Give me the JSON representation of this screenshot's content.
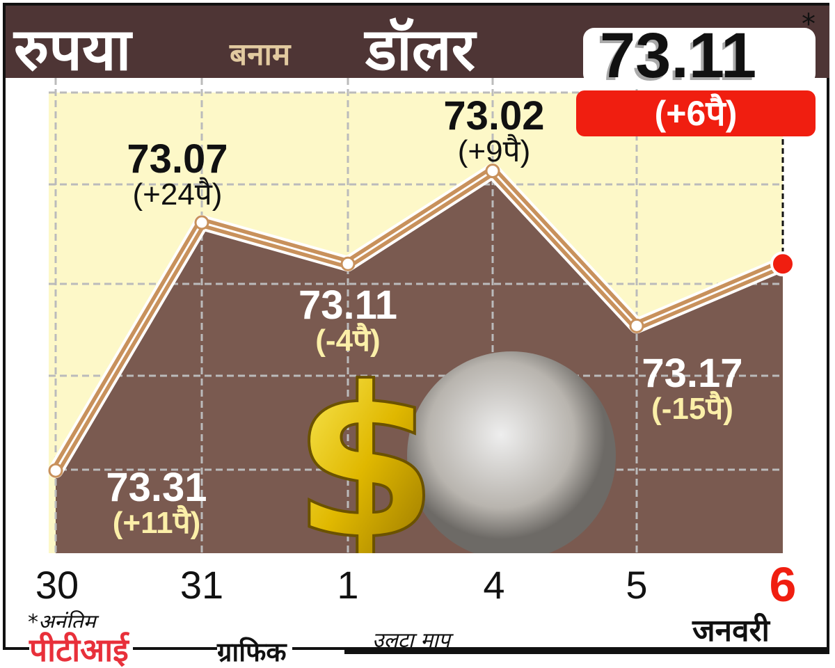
{
  "title": {
    "part1": "रुपया",
    "part2": "बनाम",
    "part3": "डॉलर"
  },
  "current": {
    "value": "73.11",
    "asterisk": "*",
    "change": "(+6पै)"
  },
  "chart_data": {
    "type": "line",
    "categories": [
      "30",
      "31",
      "1",
      "4",
      "5",
      "6"
    ],
    "values": [
      73.31,
      73.07,
      73.11,
      73.02,
      73.17,
      73.11
    ],
    "data_labels": [
      {
        "value": "73.31",
        "change": "(+11पै)"
      },
      {
        "value": "73.07",
        "change": "(+24पै)"
      },
      {
        "value": "73.11",
        "change": "(-4पै)"
      },
      {
        "value": "73.02",
        "change": "(+9पै)"
      },
      {
        "value": "73.17",
        "change": "(-15पै)"
      },
      {
        "value": "73.11",
        "change": "(+6पै)"
      }
    ],
    "xlabel": "जनवरी",
    "axis_note": "उलटा माप",
    "ylim": [
      72.93,
      73.39
    ],
    "y_reversed": true,
    "grid": true,
    "colors": {
      "above": "#fdf8c8",
      "below": "#7a5a50",
      "line": "#c8915c",
      "last_point": "#f01e10",
      "header": "#4e3535"
    }
  },
  "footer": {
    "note": "*अनंतिम",
    "source_name": "पीटीआई",
    "source_suffix": "ग्राफिक"
  }
}
